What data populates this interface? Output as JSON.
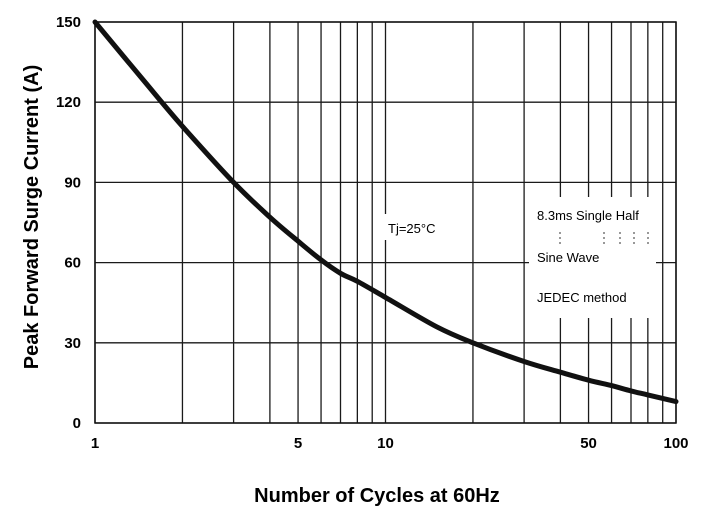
{
  "chart_data": {
    "type": "line",
    "title": "",
    "xlabel": "Number of Cycles at 60Hz",
    "ylabel": "Peak Forward Surge Current (A)",
    "xscale": "log",
    "xlim": [
      1,
      100
    ],
    "ylim": [
      0,
      150
    ],
    "x_ticks": [
      1,
      5,
      10,
      50,
      100
    ],
    "x_tick_labels": [
      "1",
      "5",
      "10",
      "50",
      "100"
    ],
    "x_gridlines": [
      1,
      2,
      3,
      4,
      5,
      6,
      7,
      8,
      9,
      10,
      20,
      30,
      40,
      50,
      60,
      70,
      80,
      90,
      100
    ],
    "y_ticks": [
      0,
      30,
      60,
      90,
      120,
      150
    ],
    "y_tick_labels": [
      "0",
      "30",
      "60",
      "90",
      "120",
      "150"
    ],
    "grid": true,
    "series": [
      {
        "x": [
          1,
          1.5,
          2,
          3,
          4,
          5,
          6,
          7,
          8,
          10,
          15,
          20,
          30,
          40,
          50,
          60,
          70,
          80,
          100
        ],
        "y": [
          150,
          127,
          111,
          90,
          77,
          68,
          61,
          56,
          53,
          47,
          36,
          30,
          23,
          19,
          16,
          14,
          12,
          10.5,
          8
        ]
      }
    ],
    "annotations": {
      "temperature": "Tj=25°C",
      "conditions": [
        "8.3ms Single Half",
        "Sine Wave",
        "JEDEC method"
      ]
    },
    "colors": {
      "line": "#111111",
      "grid": "#1a1a1a",
      "background": "#ffffff"
    }
  }
}
